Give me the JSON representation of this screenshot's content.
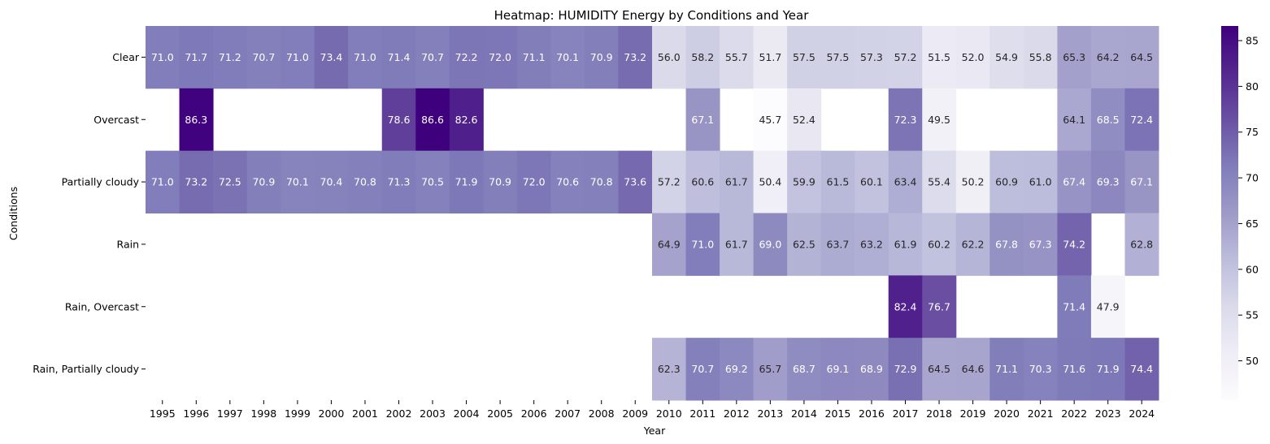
{
  "chart_data": {
    "type": "heatmap",
    "title": "Heatmap: HUMIDITY Energy by Conditions and Year",
    "xlabel": "Year",
    "ylabel": "Conditions",
    "x": [
      "1995",
      "1996",
      "1997",
      "1998",
      "1999",
      "2000",
      "2001",
      "2002",
      "2003",
      "2004",
      "2005",
      "2006",
      "2007",
      "2008",
      "2009",
      "2010",
      "2011",
      "2012",
      "2013",
      "2014",
      "2015",
      "2016",
      "2017",
      "2018",
      "2019",
      "2020",
      "2021",
      "2022",
      "2023",
      "2024"
    ],
    "y": [
      "Clear",
      "Overcast",
      "Partially cloudy",
      "Rain",
      "Rain, Overcast",
      "Rain, Partially cloudy"
    ],
    "values": [
      [
        71.0,
        71.7,
        71.2,
        70.7,
        71.0,
        73.4,
        71.0,
        71.4,
        70.7,
        72.2,
        72.0,
        71.1,
        70.1,
        70.9,
        73.2,
        56.0,
        58.2,
        55.7,
        51.7,
        57.5,
        57.5,
        57.3,
        57.2,
        51.5,
        52.0,
        54.9,
        55.8,
        65.3,
        64.2,
        64.5
      ],
      [
        null,
        86.3,
        null,
        null,
        null,
        null,
        null,
        78.6,
        86.6,
        82.6,
        null,
        null,
        null,
        null,
        null,
        null,
        67.1,
        null,
        45.7,
        52.4,
        null,
        null,
        72.3,
        49.5,
        null,
        null,
        null,
        64.1,
        68.5,
        72.4
      ],
      [
        71.0,
        73.2,
        72.5,
        70.9,
        70.1,
        70.4,
        70.8,
        71.3,
        70.5,
        71.9,
        70.9,
        72.0,
        70.6,
        70.8,
        73.6,
        57.2,
        60.6,
        61.7,
        50.4,
        59.9,
        61.5,
        60.1,
        63.4,
        55.4,
        50.2,
        60.9,
        61.0,
        67.4,
        69.3,
        67.1
      ],
      [
        null,
        null,
        null,
        null,
        null,
        null,
        null,
        null,
        null,
        null,
        null,
        null,
        null,
        null,
        null,
        64.9,
        71.0,
        61.7,
        69.0,
        62.5,
        63.7,
        63.2,
        61.9,
        60.2,
        62.2,
        67.8,
        67.3,
        74.2,
        null,
        62.8
      ],
      [
        null,
        null,
        null,
        null,
        null,
        null,
        null,
        null,
        null,
        null,
        null,
        null,
        null,
        null,
        null,
        null,
        null,
        null,
        null,
        null,
        null,
        null,
        82.4,
        76.7,
        null,
        null,
        null,
        71.4,
        47.9,
        null
      ],
      [
        null,
        null,
        null,
        null,
        null,
        null,
        null,
        null,
        null,
        null,
        null,
        null,
        null,
        null,
        null,
        62.3,
        70.7,
        69.2,
        65.7,
        68.7,
        69.1,
        68.9,
        72.9,
        64.5,
        64.6,
        71.1,
        70.3,
        71.6,
        71.9,
        74.4
      ]
    ],
    "colormap": "Purples",
    "vmin": 45.7,
    "vmax": 86.6,
    "colorbar_ticks": [
      50,
      55,
      60,
      65,
      70,
      75,
      80,
      85
    ],
    "annot_format": "0.1f"
  }
}
